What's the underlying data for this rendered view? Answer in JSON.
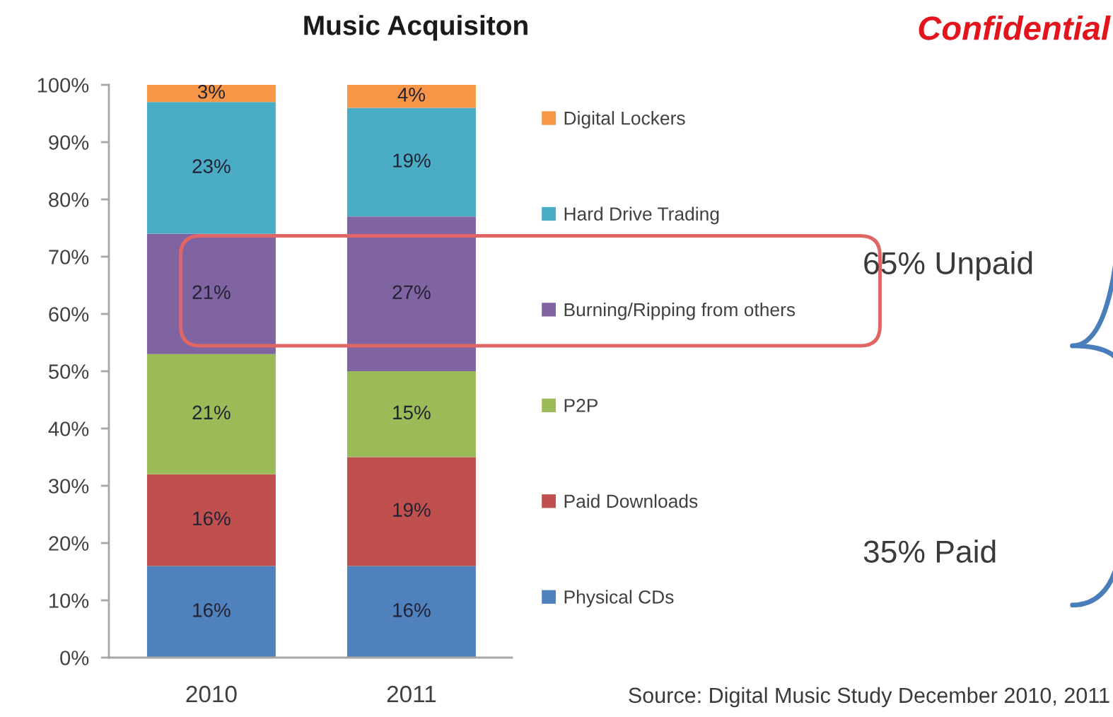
{
  "chart_data": {
    "type": "bar",
    "title": "Music Acquisiton",
    "stacked": true,
    "categories": [
      "2010",
      "2011"
    ],
    "series": [
      {
        "name": "Physical CDs",
        "color": "#4f81bd",
        "values": [
          16,
          16
        ],
        "value_labels": [
          "16%",
          "16%"
        ]
      },
      {
        "name": "Paid Downloads",
        "color": "#c0504d",
        "values": [
          16,
          19
        ],
        "value_labels": [
          "16%",
          "19%"
        ]
      },
      {
        "name": "P2P",
        "color": "#9bbb59",
        "values": [
          21,
          15
        ],
        "value_labels": [
          "21%",
          "15%"
        ]
      },
      {
        "name": "Burning/Ripping from others",
        "color": "#8064a2",
        "values": [
          21,
          27
        ],
        "value_labels": [
          "21%",
          "27%"
        ]
      },
      {
        "name": "Hard Drive Trading",
        "color": "#4bacc6",
        "values": [
          23,
          19
        ],
        "value_labels": [
          "23%",
          "19%"
        ]
      },
      {
        "name": "Digital Lockers",
        "color": "#f79646",
        "values": [
          3,
          4
        ],
        "value_labels": [
          "3%",
          "4%"
        ]
      }
    ],
    "ylim": [
      0,
      100
    ],
    "yticks": [
      {
        "value": 0,
        "label": "0%"
      },
      {
        "value": 10,
        "label": "10%"
      },
      {
        "value": 20,
        "label": "20%"
      },
      {
        "value": 30,
        "label": "30%"
      },
      {
        "value": 40,
        "label": "40%"
      },
      {
        "value": 50,
        "label": "50%"
      },
      {
        "value": 60,
        "label": "60%"
      },
      {
        "value": 70,
        "label": "70%"
      },
      {
        "value": 80,
        "label": "80%"
      },
      {
        "value": 90,
        "label": "90%"
      },
      {
        "value": 100,
        "label": "100%"
      }
    ],
    "legend": "right",
    "annotations": [
      "Confidential",
      "65% Unpaid",
      "35% Paid",
      "Source: Digital Music Study December 2010, 2011"
    ]
  }
}
